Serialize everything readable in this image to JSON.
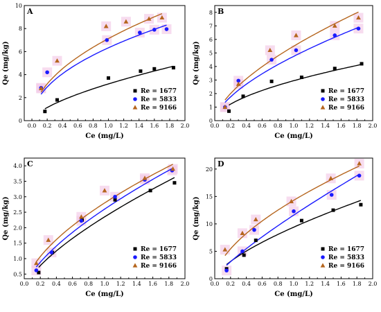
{
  "chart_data": [
    {
      "type": "scatter",
      "panel_label": "A",
      "xlabel": "Ce (mg/L)",
      "ylabel": "Qe (mg/kg)",
      "xlim": [
        -0.1,
        2.0
      ],
      "ylim": [
        0,
        10
      ],
      "xticks": [
        "0.0",
        "0.2",
        "0.4",
        "0.6",
        "0.8",
        "1.0",
        "1.2",
        "1.4",
        "1.6",
        "1.8",
        "2.0"
      ],
      "yticks": [
        "0",
        "2",
        "4",
        "6",
        "8",
        "10"
      ],
      "legend_position": "bottom-right",
      "series": [
        {
          "name": "Re = 1677",
          "color": "#000000",
          "marker": "square",
          "x": [
            0.17,
            0.33,
            1.0,
            1.42,
            1.6,
            1.85
          ],
          "y": [
            0.8,
            1.8,
            3.7,
            4.3,
            4.5,
            4.6
          ],
          "fit": {
            "a": 3.19,
            "n": 0.64
          }
        },
        {
          "name": "Re = 5833",
          "color": "#1a1aff",
          "marker": "circle",
          "x": [
            0.12,
            0.2,
            0.98,
            1.41,
            1.6,
            1.76
          ],
          "y": [
            2.85,
            4.2,
            7.0,
            7.65,
            7.9,
            7.95
          ],
          "fit": {
            "a": 6.33,
            "n": 0.48
          }
        },
        {
          "name": "Re = 9166",
          "color": "#b5651d",
          "marker": "triangle",
          "x": [
            0.12,
            0.33,
            0.97,
            1.23,
            1.53,
            1.7
          ],
          "y": [
            2.8,
            5.2,
            8.2,
            8.6,
            8.85,
            8.95
          ],
          "fit": {
            "a": 7.13,
            "n": 0.5
          }
        }
      ]
    },
    {
      "type": "scatter",
      "panel_label": "B",
      "xlabel": "Ce (mg/L)",
      "ylabel": "Qe (mg/kg)",
      "xlim": [
        0,
        2.0
      ],
      "ylim": [
        0,
        8.5
      ],
      "xticks": [
        "0.0",
        "0.2",
        "0.4",
        "0.6",
        "0.8",
        "1.0",
        "1.2",
        "1.4",
        "1.6",
        "1.8",
        "2.0"
      ],
      "yticks": [
        "0",
        "1",
        "2",
        "3",
        "4",
        "5",
        "6",
        "7",
        "8"
      ],
      "legend_position": "bottom-right",
      "series": [
        {
          "name": "Re = 1677",
          "color": "#000000",
          "marker": "square",
          "x": [
            0.18,
            0.36,
            0.72,
            1.1,
            1.52,
            1.86
          ],
          "y": [
            0.7,
            1.8,
            2.9,
            3.2,
            3.85,
            4.2
          ],
          "fit": {
            "a": 2.95,
            "n": 0.55
          }
        },
        {
          "name": "Re = 5833",
          "color": "#1a1aff",
          "marker": "circle",
          "x": [
            0.13,
            0.3,
            0.72,
            1.03,
            1.52,
            1.82
          ],
          "y": [
            1.0,
            2.95,
            4.5,
            5.2,
            6.3,
            6.8
          ],
          "fit": {
            "a": 4.75,
            "n": 0.62
          }
        },
        {
          "name": "Re = 9166",
          "color": "#b5651d",
          "marker": "triangle",
          "x": [
            0.13,
            0.3,
            0.7,
            1.03,
            1.52,
            1.82
          ],
          "y": [
            1.0,
            2.7,
            5.2,
            6.3,
            7.0,
            7.6
          ],
          "fit": {
            "a": 5.5,
            "n": 0.63
          }
        }
      ]
    },
    {
      "type": "scatter",
      "panel_label": "C",
      "xlabel": "Ce (mg/L)",
      "ylabel": "Qe (mg/kg)",
      "xlim": [
        0,
        2.0
      ],
      "ylim": [
        0.35,
        4.25
      ],
      "xticks": [
        "0.0",
        "0.2",
        "0.4",
        "0.6",
        "0.8",
        "1.0",
        "1.2",
        "1.4",
        "1.6",
        "1.8",
        "2.0"
      ],
      "yticks": [
        "0.5",
        "1.0",
        "1.5",
        "2.0",
        "2.5",
        "3.0",
        "3.5",
        "4.0"
      ],
      "legend_position": "bottom-right",
      "series": [
        {
          "name": "Re = 1677",
          "color": "#000000",
          "marker": "square",
          "x": [
            0.18,
            0.35,
            0.72,
            1.13,
            1.57,
            1.87
          ],
          "y": [
            0.55,
            1.2,
            2.25,
            2.9,
            3.2,
            3.45
          ],
          "fit": {
            "a": 2.35,
            "n": 0.69
          }
        },
        {
          "name": "Re = 5833",
          "color": "#1a1aff",
          "marker": "circle",
          "x": [
            0.15,
            0.34,
            0.71,
            1.13,
            1.5,
            1.84
          ],
          "y": [
            0.62,
            1.2,
            2.22,
            3.0,
            3.55,
            3.85
          ],
          "fit": {
            "a": 2.6,
            "n": 0.67
          }
        },
        {
          "name": "Re = 9166",
          "color": "#b5651d",
          "marker": "triangle",
          "x": [
            0.15,
            0.3,
            0.71,
            1.0,
            1.5,
            1.85
          ],
          "y": [
            0.85,
            1.6,
            2.35,
            3.2,
            3.6,
            3.9
          ],
          "fit": {
            "a": 2.8,
            "n": 0.6
          }
        }
      ]
    },
    {
      "type": "scatter",
      "panel_label": "D",
      "xlabel": "Ce (mg/L)",
      "ylabel": "Qe (mg/kg)",
      "xlim": [
        0,
        2.0
      ],
      "ylim": [
        0,
        22
      ],
      "xticks": [
        "0.0",
        "0.2",
        "0.4",
        "0.6",
        "0.8",
        "1.0",
        "1.2",
        "1.4",
        "1.6",
        "1.8",
        "2.0"
      ],
      "yticks": [
        "0",
        "5",
        "10",
        "15",
        "20"
      ],
      "legend_position": "bottom-right",
      "series": [
        {
          "name": "Re = 1677",
          "color": "#000000",
          "marker": "square",
          "x": [
            0.15,
            0.37,
            0.52,
            1.1,
            1.5,
            1.85
          ],
          "y": [
            1.8,
            4.3,
            7.0,
            10.6,
            12.5,
            13.5
          ],
          "fit": {
            "a": 9.4,
            "n": 0.68
          }
        },
        {
          "name": "Re = 5833",
          "color": "#1a1aff",
          "marker": "circle",
          "x": [
            0.15,
            0.35,
            0.5,
            1.0,
            1.48,
            1.83
          ],
          "y": [
            1.5,
            5.0,
            8.9,
            12.3,
            15.3,
            18.8
          ],
          "fit": {
            "a": 11.6,
            "n": 0.82
          }
        },
        {
          "name": "Re = 9166",
          "color": "#b5651d",
          "marker": "triangle",
          "x": [
            0.13,
            0.35,
            0.52,
            0.97,
            1.47,
            1.83
          ],
          "y": [
            5.3,
            8.3,
            10.8,
            14.1,
            18.3,
            21.0
          ],
          "fit": {
            "a": 14.3,
            "n": 0.6
          }
        }
      ]
    }
  ]
}
